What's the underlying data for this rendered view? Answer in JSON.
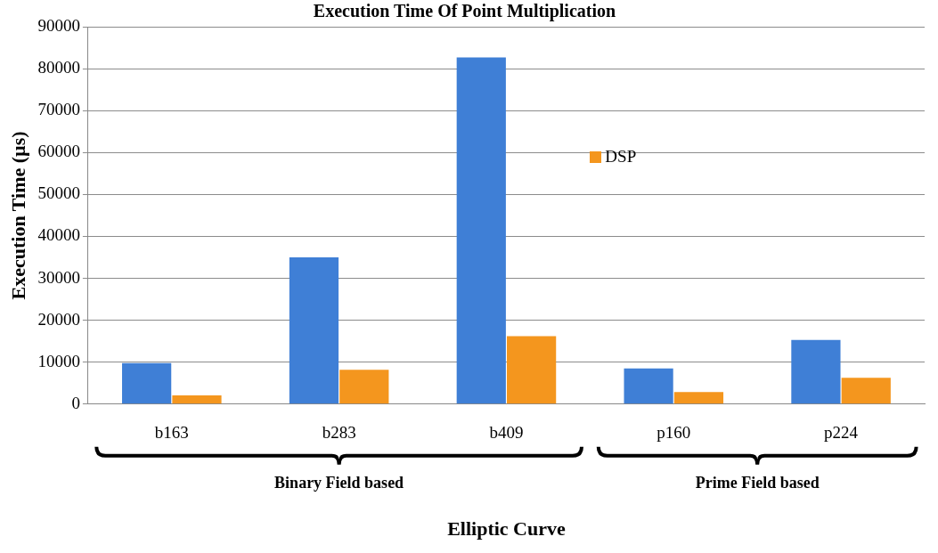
{
  "chart_data": {
    "type": "bar",
    "title": "Execution Time Of Point Multiplication",
    "xlabel": "Elliptic Curve",
    "ylabel": "Execution Time (µs)",
    "categories": [
      "b163",
      "b283",
      "b409",
      "p160",
      "p224"
    ],
    "series": [
      {
        "color": "#3f7fd6",
        "values": [
          9800,
          35000,
          82700,
          8500,
          15300
        ]
      },
      {
        "name": "DSP",
        "color": "#f4961e",
        "values": [
          2100,
          8200,
          16200,
          2900,
          6300
        ]
      }
    ],
    "ylim": [
      0,
      90000
    ],
    "yticks": [
      0,
      10000,
      20000,
      30000,
      40000,
      50000,
      60000,
      70000,
      80000,
      90000
    ],
    "grid": "y",
    "legend": "top right",
    "annotations": [
      "Binary Field based",
      "Prime Field based"
    ]
  }
}
